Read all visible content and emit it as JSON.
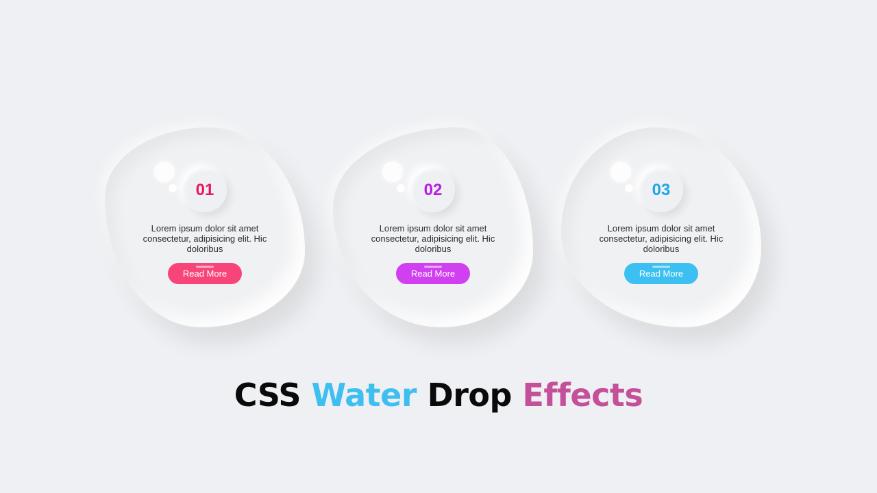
{
  "cards": [
    {
      "number": "01",
      "text": "Lorem ipsum dolor sit amet consectetur, adipisicing elit. Hic doloribus",
      "button_label": "Read More",
      "number_color": "#e8175d",
      "button_color": "#f7457a"
    },
    {
      "number": "02",
      "text": "Lorem ipsum dolor sit amet consectetur, adipisicing elit. Hic doloribus",
      "button_label": "Read More",
      "number_color": "#b81de0",
      "button_color": "#d040f0"
    },
    {
      "number": "03",
      "text": "Lorem ipsum dolor sit amet consectetur, adipisicing elit. Hic doloribus",
      "button_label": "Read More",
      "number_color": "#1aa8e8",
      "button_color": "#3cc0f2"
    }
  ],
  "headline": {
    "word1": "CSS",
    "word2": "Water",
    "word3": "Drop",
    "word4": "Effects",
    "color_dark": "#0a0a0a",
    "color_blue": "#3fbff0",
    "color_pink": "#c4509a"
  },
  "colors": {
    "background": "#eff0f3"
  }
}
